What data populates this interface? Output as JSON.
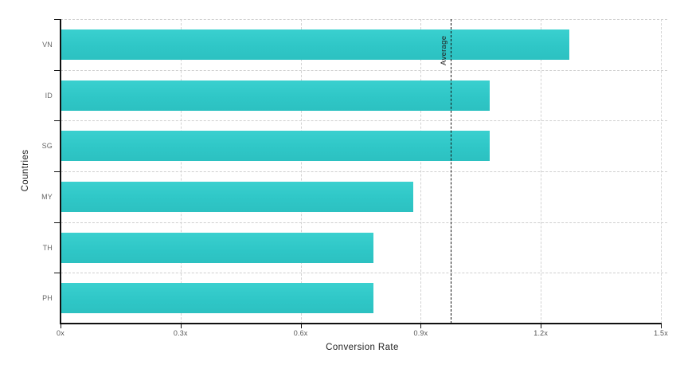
{
  "chart_data": {
    "type": "bar",
    "orientation": "horizontal",
    "xlabel": "Conversion Rate",
    "ylabel": "Countries",
    "categories": [
      "VN",
      "ID",
      "SG",
      "MY",
      "TH",
      "PH"
    ],
    "values": [
      1.27,
      1.07,
      1.07,
      0.88,
      0.78,
      0.78
    ],
    "xlim": [
      0,
      1.5
    ],
    "x_ticks": [
      {
        "value": 0,
        "label": "0x"
      },
      {
        "value": 0.3,
        "label": "0.3x"
      },
      {
        "value": 0.6,
        "label": "0.6x"
      },
      {
        "value": 0.9,
        "label": "0.9x"
      },
      {
        "value": 1.2,
        "label": "1.2x"
      },
      {
        "value": 1.5,
        "label": "1.5x"
      }
    ],
    "grid": true,
    "legend": "none",
    "reference_line": {
      "label": "Average",
      "value": 0.975
    },
    "colors": {
      "bar": "#2fc7c7",
      "grid": "#d2d2d2",
      "axis": "#111111",
      "reference": "#111111",
      "tick_text": "#555555",
      "category_text": "#666666",
      "title_text": "#222222"
    }
  }
}
